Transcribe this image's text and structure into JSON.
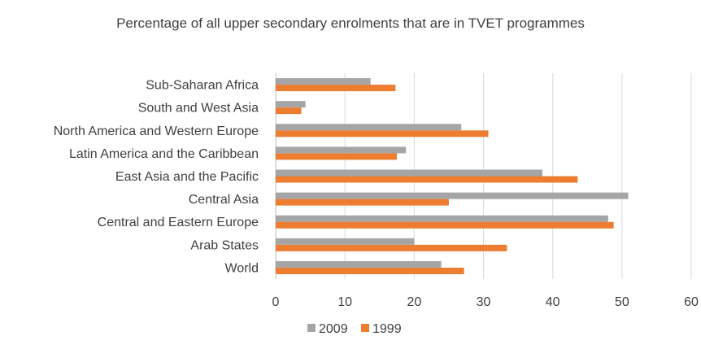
{
  "chart_data": {
    "type": "bar",
    "orientation": "horizontal",
    "title": "Percentage of all upper secondary enrolments that are in TVET programmes",
    "xlabel": "",
    "ylabel": "",
    "categories": [
      "Sub-Saharan Africa",
      "South and West Asia",
      "North America and Western Europe",
      "Latin America and the Caribbean",
      "East Asia and the Pacific",
      "Central Asia",
      "Central and Eastern Europe",
      "Arab States",
      "World"
    ],
    "series": [
      {
        "name": "2009",
        "color": "#a5a5a5",
        "values": [
          13.7,
          4.3,
          26.8,
          18.8,
          38.5,
          50.9,
          48.0,
          20.0,
          23.9
        ]
      },
      {
        "name": "1999",
        "color": "#ed7d31",
        "values": [
          17.3,
          3.7,
          30.7,
          17.5,
          43.6,
          25.0,
          48.8,
          33.4,
          27.2
        ]
      }
    ],
    "xlim": [
      0,
      60
    ],
    "xticks": [
      0,
      10,
      20,
      30,
      40,
      50,
      60
    ],
    "grid": true,
    "legend_position": "bottom"
  }
}
